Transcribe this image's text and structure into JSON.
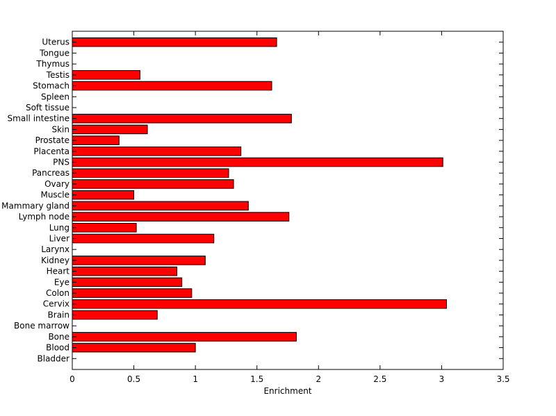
{
  "chart_data": {
    "type": "bar",
    "orientation": "horizontal",
    "title": "",
    "xlabel": "Enrichment",
    "ylabel": "",
    "xlim": [
      0,
      3.5
    ],
    "xticks": [
      "0",
      "0.5",
      "1",
      "1.5",
      "2",
      "2.5",
      "3",
      "3.5"
    ],
    "grid": false,
    "legend": "none",
    "bar_color": "#ff0000",
    "edge_color": "#000000",
    "categories": [
      "Bladder",
      "Blood",
      "Bone",
      "Bone marrow",
      "Brain",
      "Cervix",
      "Colon",
      "Eye",
      "Heart",
      "Kidney",
      "Larynx",
      "Liver",
      "Lung",
      "Lymph node",
      "Mammary gland",
      "Muscle",
      "Ovary",
      "Pancreas",
      "PNS",
      "Placenta",
      "Prostate",
      "Skin",
      "Small intestine",
      "Soft tissue",
      "Spleen",
      "Stomach",
      "Testis",
      "Thymus",
      "Tongue",
      "Uterus"
    ],
    "values": [
      0,
      1.0,
      1.82,
      0,
      0.69,
      3.04,
      0.97,
      0.89,
      0.85,
      1.08,
      0,
      1.15,
      0.52,
      1.76,
      1.43,
      0.5,
      1.31,
      1.27,
      3.01,
      1.37,
      0.38,
      0.61,
      1.78,
      0,
      0,
      1.62,
      0.55,
      0,
      0,
      1.66
    ]
  }
}
